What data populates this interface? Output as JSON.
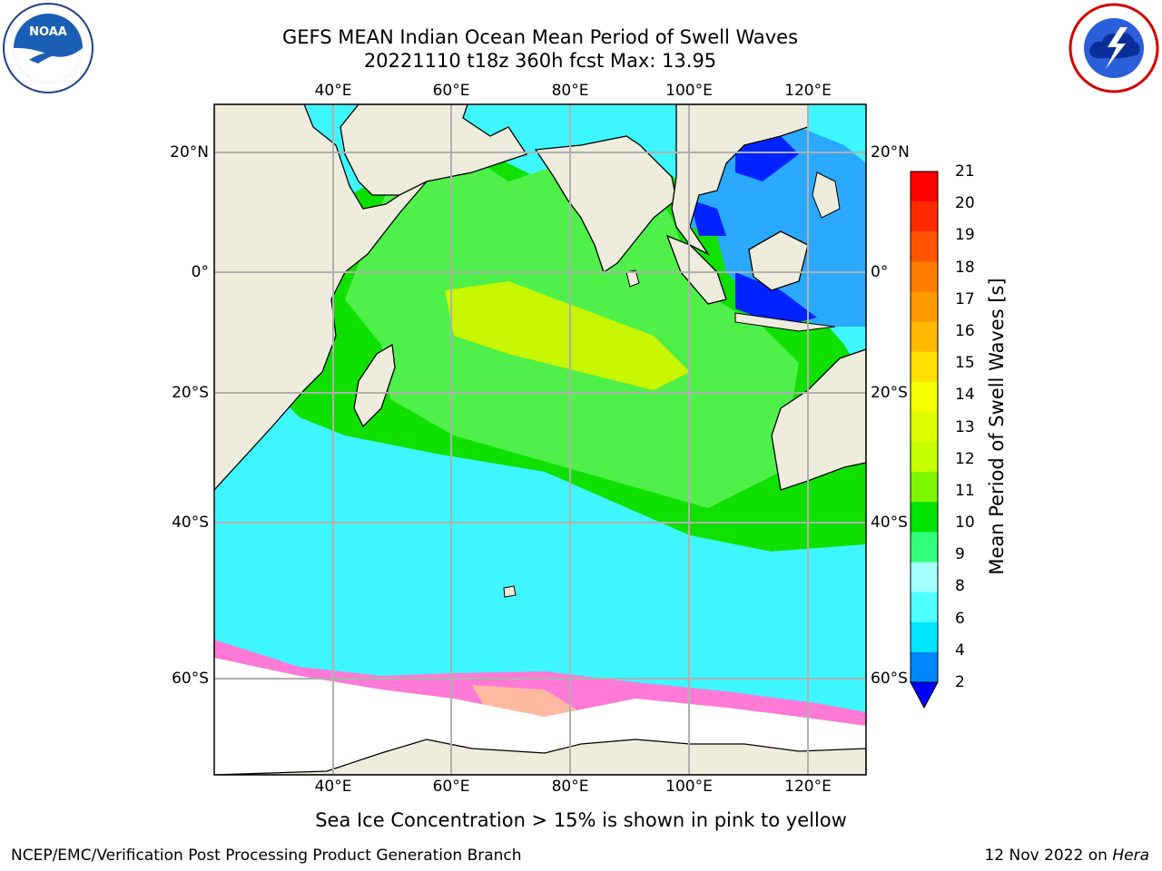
{
  "title": {
    "line1": "GEFS MEAN Indian Ocean Mean Period of Swell Waves",
    "line2": "20221110 t18z 360h fcst   Max: 13.95"
  },
  "logos": {
    "noaa_text": "NOAA",
    "nws_text": "NATIONAL WEATHER SERVICE"
  },
  "map": {
    "lon_ticks": [
      "40°E",
      "60°E",
      "80°E",
      "100°E",
      "120°E"
    ],
    "lat_ticks": [
      "20°N",
      "0°",
      "20°S",
      "40°S",
      "60°S"
    ],
    "caption": "Sea Ice Concentration > 15% is shown in pink to yellow"
  },
  "colorbar": {
    "label": "Mean Period of Swell Waves [s]",
    "ticks": [
      "21",
      "20",
      "19",
      "18",
      "17",
      "16",
      "15",
      "14",
      "13",
      "12",
      "11",
      "10",
      "9",
      "8",
      "6",
      "4",
      "2"
    ],
    "colors": [
      "#fe0000",
      "#ff2a00",
      "#ff5300",
      "#ff7c00",
      "#ff9a00",
      "#ffb900",
      "#ffe000",
      "#f4ff00",
      "#ddff00",
      "#c5ff00",
      "#7cf700",
      "#00e400",
      "#32ff7c",
      "#a4ffff",
      "#4effff",
      "#00e6ff",
      "#0086ff"
    ],
    "extend_color": "#0000ff"
  },
  "footer": {
    "left": "NCEP/EMC/Verification Post Processing Product Generation Branch",
    "right_date": "12 Nov 2022 on ",
    "right_host": "Hera"
  }
}
